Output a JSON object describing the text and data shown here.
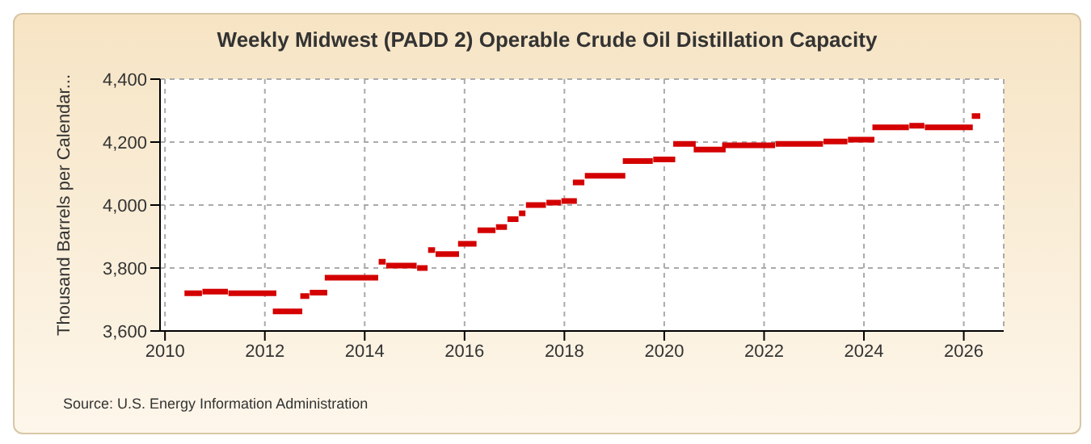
{
  "chart_data": {
    "type": "line",
    "title": "Weekly Midwest (PADD 2) Operable Crude Oil Distillation Capacity",
    "ylabel": "Thousand Barrels per Calendar...",
    "annotations": [
      "Source: U.S. Energy Information Administration"
    ],
    "x": [
      2010.39,
      2010.74,
      null,
      2010.75,
      2011.26,
      null,
      2011.27,
      2012.23,
      null,
      2012.16,
      2012.75,
      null,
      2012.71,
      2012.89,
      null,
      2012.9,
      2013.25,
      null,
      2013.2,
      2014.27,
      null,
      2014.28,
      2014.42,
      null,
      2014.43,
      2015.04,
      null,
      2015.05,
      2015.26,
      null,
      2015.27,
      2015.41,
      null,
      2015.42,
      2015.89,
      null,
      2015.87,
      2016.24,
      null,
      2016.26,
      2016.62,
      null,
      2016.63,
      2016.85,
      null,
      2016.86,
      2017.08,
      null,
      2017.09,
      2017.22,
      null,
      2017.23,
      2017.63,
      null,
      2017.64,
      2017.93,
      null,
      2017.94,
      2018.25,
      null,
      2018.17,
      2018.4,
      null,
      2018.41,
      2019.22,
      null,
      2019.17,
      2019.77,
      null,
      2019.78,
      2020.22,
      null,
      2020.18,
      2020.63,
      null,
      2020.59,
      2021.23,
      null,
      2021.16,
      2022.22,
      null,
      2022.23,
      2023.18,
      null,
      2023.19,
      2023.67,
      null,
      2023.68,
      2024.21,
      null,
      2024.17,
      2024.9,
      null,
      2024.91,
      2025.21,
      null,
      2025.22,
      2026.18,
      null,
      2026.16,
      2026.33
    ],
    "series": [
      {
        "color": "#d40000",
        "values": [
          3720,
          3720,
          null,
          3725,
          3725,
          null,
          3720,
          3720,
          null,
          3662,
          3662,
          null,
          3711,
          3711,
          null,
          3722,
          3722,
          null,
          3769,
          3769,
          null,
          3820,
          3820,
          null,
          3808,
          3808,
          null,
          3800,
          3800,
          null,
          3857,
          3857,
          null,
          3844,
          3844,
          null,
          3877,
          3877,
          null,
          3920,
          3920,
          null,
          3930,
          3930,
          null,
          3955,
          3955,
          null,
          3974,
          3974,
          null,
          4000,
          4000,
          null,
          4008,
          4008,
          null,
          4013,
          4013,
          null,
          4072,
          4072,
          null,
          4093,
          4093,
          null,
          4140,
          4140,
          null,
          4145,
          4145,
          null,
          4194,
          4194,
          null,
          4176,
          4176,
          null,
          4190,
          4190,
          null,
          4194,
          4194,
          null,
          4202,
          4202,
          null,
          4208,
          4208,
          null,
          4247,
          4247,
          null,
          4252,
          4252,
          null,
          4247,
          4247,
          null,
          4283,
          4283
        ]
      }
    ],
    "xlim": [
      2009.9,
      2026.8
    ],
    "xticks": [
      2010,
      2012,
      2014,
      2016,
      2018,
      2020,
      2022,
      2024,
      2026
    ],
    "ylim": [
      3600,
      4400
    ],
    "yticks": [
      {
        "value": 3600,
        "label": "3,600"
      },
      {
        "value": 3800,
        "label": "3,800"
      },
      {
        "value": 4000,
        "label": "4,000"
      },
      {
        "value": 4200,
        "label": "4,200"
      },
      {
        "value": 4400,
        "label": "4,400"
      }
    ],
    "grid": true,
    "marker": "none",
    "line_style": "solid",
    "legend": false
  }
}
